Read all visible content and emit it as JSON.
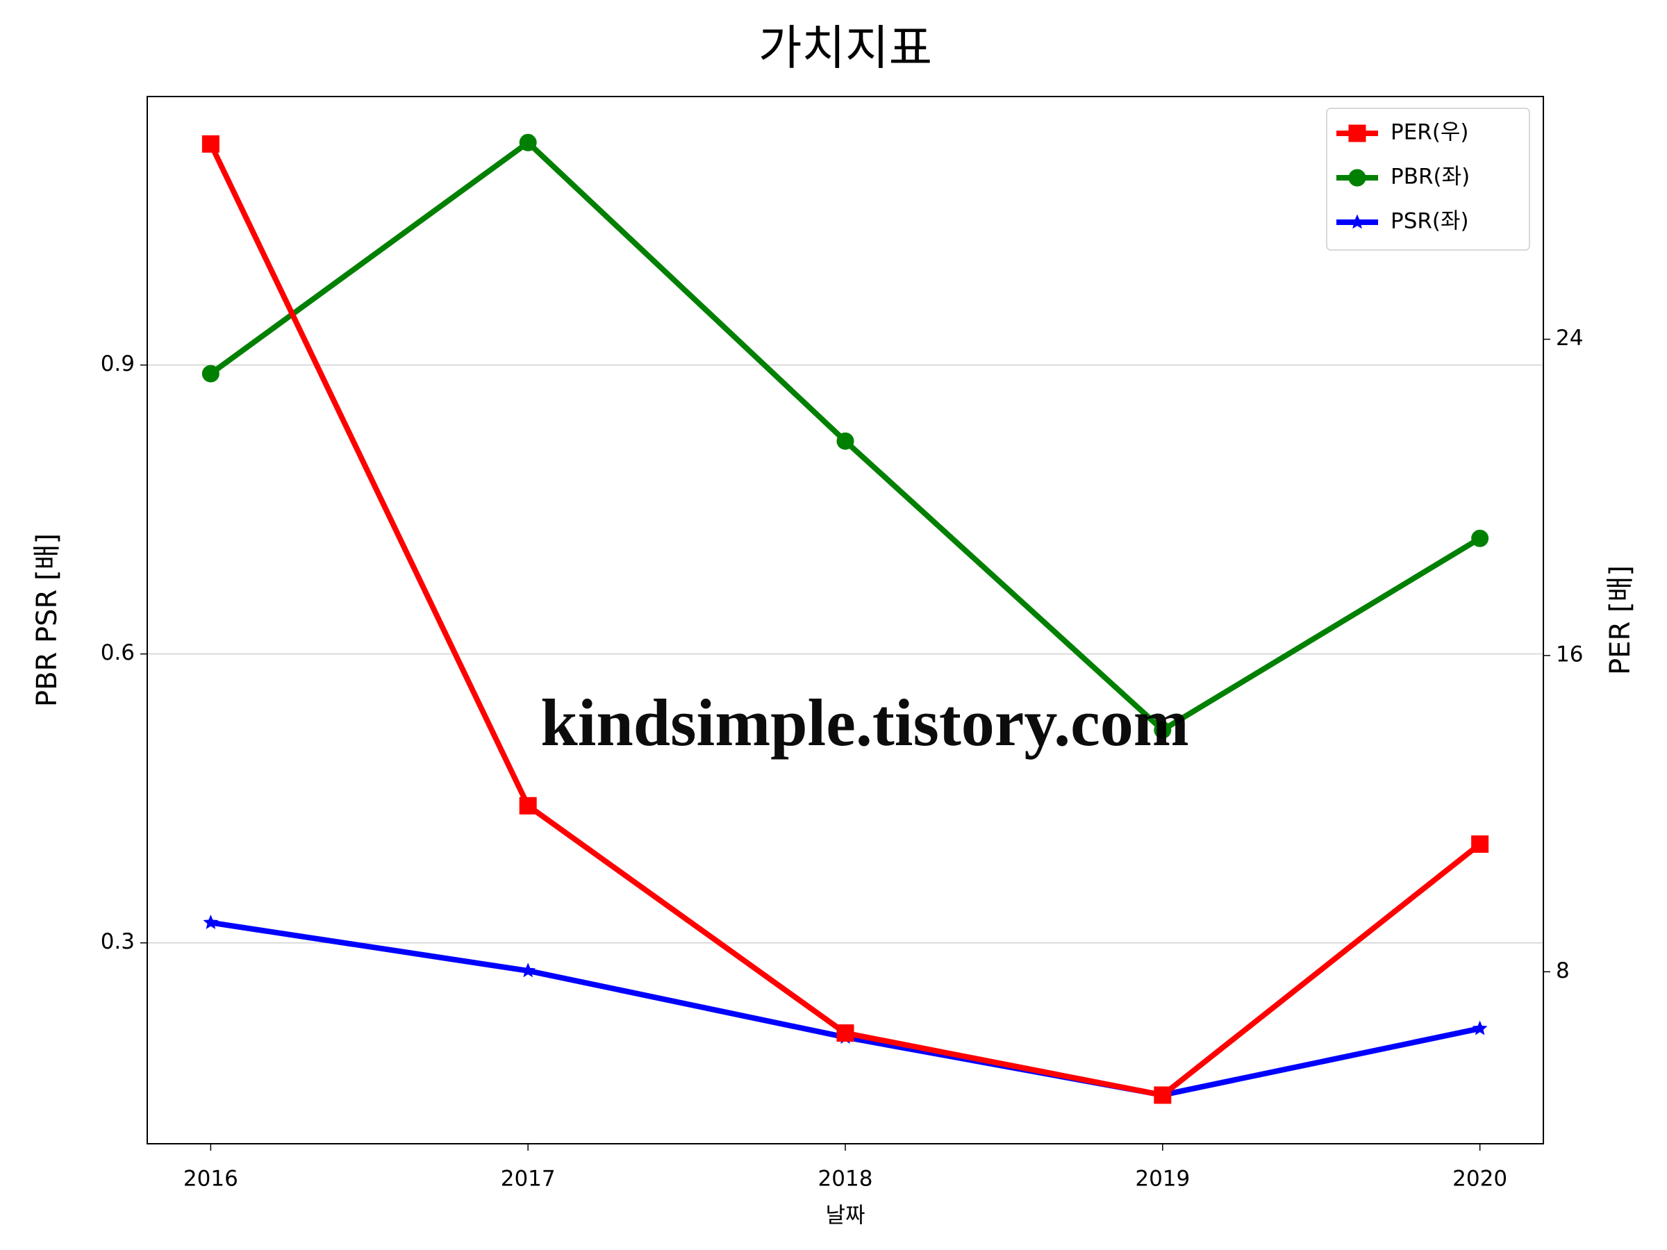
{
  "chart_data": {
    "type": "line",
    "title": "가치지표",
    "x_label": "날짜",
    "y_label": "PBR PSR [배]",
    "y2_label": "PER [배]",
    "watermark": "kindsimple.tistory.com",
    "x": [
      2016,
      2017,
      2018,
      2019,
      2020
    ],
    "xlim": [
      2015.8,
      2020.2
    ],
    "xticks": [
      2016,
      2017,
      2018,
      2019,
      2020
    ],
    "ylim": [
      0.0914,
      1.1788
    ],
    "yticks": [
      0.3,
      0.6,
      0.9
    ],
    "y2lim": [
      3.65,
      30.14
    ],
    "y2ticks": [
      8,
      16,
      24
    ],
    "grid": true,
    "legend": "upper right",
    "y_label_color": "#008000",
    "y2_label_color": "#ff0000",
    "series": [
      {
        "name": "PER(우)",
        "color": "#ff0000",
        "marker": "square",
        "axis": "y2",
        "values": [
          28.94,
          12.2,
          6.45,
          4.88,
          11.23
        ]
      },
      {
        "name": "PBR(좌)",
        "color": "#008000",
        "marker": "circle",
        "values": [
          0.891,
          1.131,
          0.821,
          0.521,
          0.72
        ]
      },
      {
        "name": "PSR(좌)",
        "color": "#0000ff",
        "marker": "star",
        "values": [
          0.321,
          0.271,
          0.202,
          0.142,
          0.211
        ]
      }
    ]
  }
}
